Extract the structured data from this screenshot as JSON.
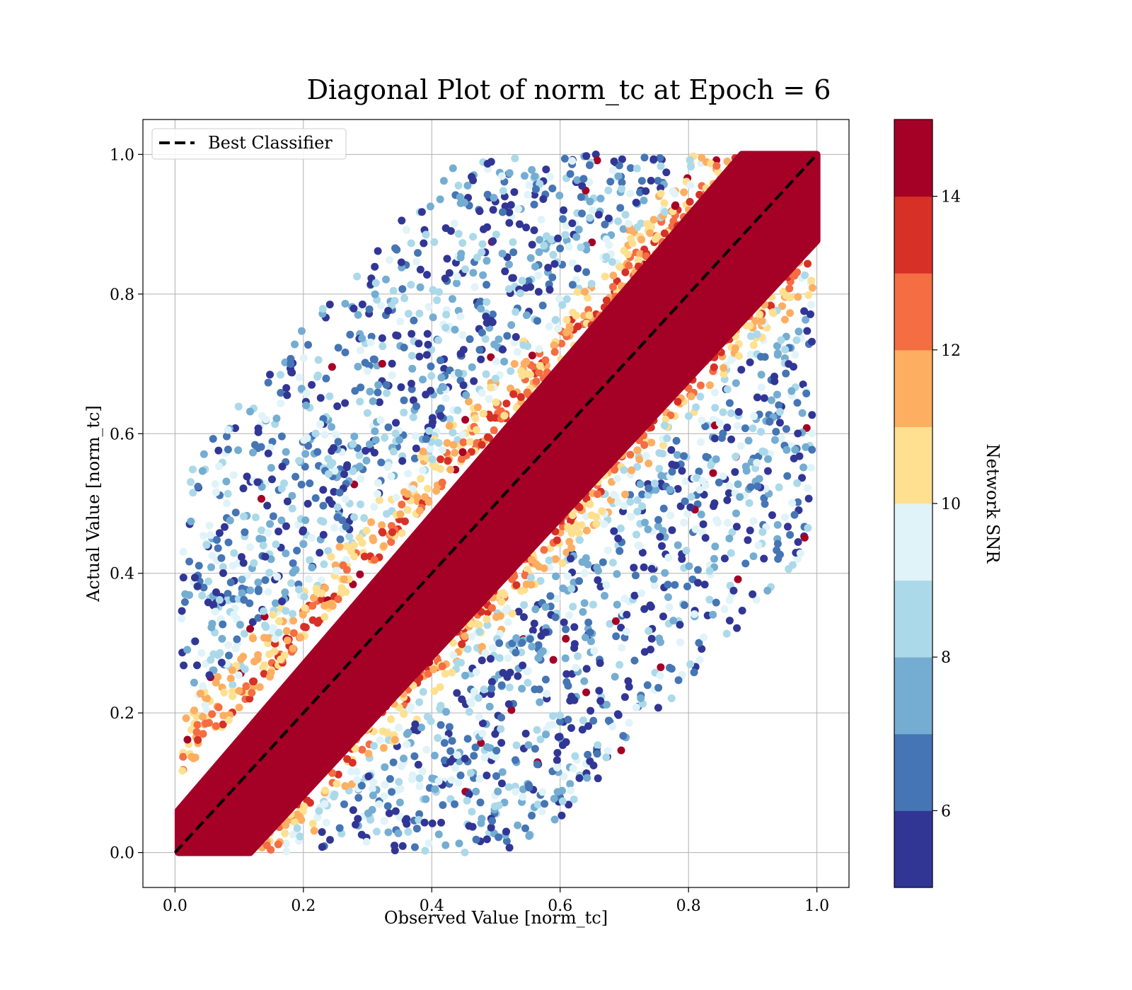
{
  "chart_data": {
    "type": "scatter",
    "title": "Diagonal Plot of norm_tc at Epoch = 6",
    "xlabel": "Observed Value [norm_tc]",
    "ylabel": "Actual Value [norm_tc]",
    "xlim": [
      -0.05,
      1.05
    ],
    "ylim": [
      -0.05,
      1.05
    ],
    "x_ticks": [
      "0.0",
      "0.2",
      "0.4",
      "0.6",
      "0.8",
      "1.0"
    ],
    "y_ticks": [
      "0.0",
      "0.2",
      "0.4",
      "0.6",
      "0.8",
      "1.0"
    ],
    "grid": true,
    "legend": {
      "placement": "top-left",
      "entries": [
        "Best Classifier"
      ]
    },
    "reference_line": {
      "name": "Best Classifier",
      "style": "dashed",
      "color": "#000000",
      "x": [
        0,
        1
      ],
      "y": [
        0,
        1
      ]
    },
    "colorbar": {
      "label": "Network SNR",
      "range": [
        5,
        15
      ],
      "ticks": [
        "6",
        "8",
        "10",
        "12",
        "14"
      ],
      "tick_values": [
        6,
        8,
        10,
        12,
        14
      ],
      "bins": 10,
      "colors": [
        "#313695",
        "#4575b4",
        "#74add1",
        "#abd9e9",
        "#e0f3f8",
        "#fee090",
        "#fdae61",
        "#f46d43",
        "#d73027",
        "#a50026"
      ]
    },
    "point_pattern": {
      "x_range": [
        0,
        1
      ],
      "y_range": [
        0,
        1
      ],
      "high_snr_band_halfwidth": 0.13,
      "scatter_spread": 0.45,
      "high_snr_color": "#a50026"
    }
  }
}
